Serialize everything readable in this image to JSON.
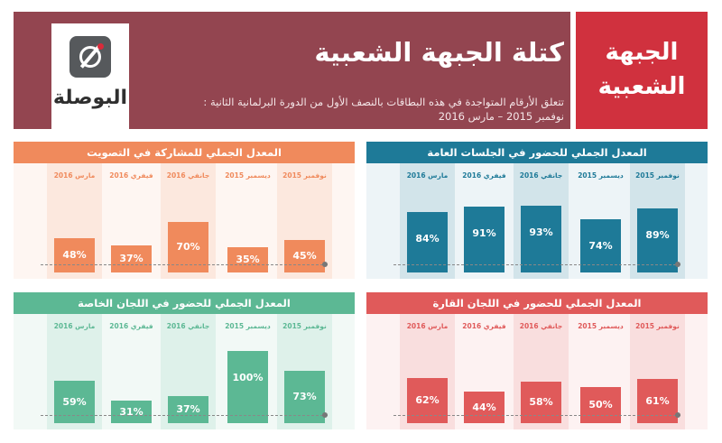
{
  "header": {
    "title": "كتلة الجبهة الشعبية",
    "subtitle_line1": "تتعلق الأرقام المتواجدة في هذه البطاقات بالنصف الأول من الدورة البرلمانية الثانية :",
    "subtitle_line2": "نوفمبر 2015 – مارس 2016",
    "bloc_name_line1": "الجبهة",
    "bloc_name_line2": "الشعبية",
    "logo_text": "البوصلة"
  },
  "colors": {
    "header_bg": "#934550",
    "name_box_bg": "#d0313e",
    "voting": "#f08a5c",
    "plenary": "#1e7a98",
    "special": "#5cb894",
    "standing": "#e05a5a"
  },
  "chart_data": [
    {
      "id": "voting",
      "type": "bar",
      "title": "المعدل الجملي للمشاركة في التصويت",
      "categories": [
        "نوفمبر 2015",
        "ديسمبر 2015",
        "جانفي 2016",
        "فيفري 2016",
        "مارس 2016"
      ],
      "values": [
        45,
        35,
        70,
        37,
        48
      ],
      "value_labels": [
        "45%",
        "35%",
        "70%",
        "37%",
        "48%"
      ],
      "highlight_categories": [
        "نوفمبر 2015",
        "جانفي 2016",
        "مارس 2016"
      ],
      "ylim": [
        0,
        100
      ],
      "color": "#f08a5c"
    },
    {
      "id": "plenary",
      "type": "bar",
      "title": "المعدل الجملي للحضور في الجلسات العامة",
      "categories": [
        "نوفمبر 2015",
        "ديسمبر 2015",
        "جانفي 2016",
        "فيفري 2016",
        "مارس 2016"
      ],
      "values": [
        89,
        74,
        93,
        91,
        84
      ],
      "value_labels": [
        "89%",
        "74%",
        "93%",
        "91%",
        "84%"
      ],
      "highlight_categories": [
        "نوفمبر 2015",
        "جانفي 2016",
        "مارس 2016"
      ],
      "ylim": [
        0,
        100
      ],
      "color": "#1e7a98"
    },
    {
      "id": "special",
      "type": "bar",
      "title": "المعدل الجملي للحضور في اللجان الخاصة",
      "categories": [
        "نوفمبر 2015",
        "ديسمبر 2015",
        "جانفي 2016",
        "فيفري 2016",
        "مارس 2016"
      ],
      "values": [
        73,
        100,
        37,
        31,
        59
      ],
      "value_labels": [
        "73%",
        "100%",
        "37%",
        "31%",
        "59%"
      ],
      "highlight_categories": [
        "نوفمبر 2015",
        "جانفي 2016",
        "مارس 2016"
      ],
      "ylim": [
        0,
        100
      ],
      "color": "#5cb894"
    },
    {
      "id": "standing",
      "type": "bar",
      "title": "المعدل الجملي للحضور في اللجان القارة",
      "categories": [
        "نوفمبر 2015",
        "ديسمبر 2015",
        "جانفي 2016",
        "فيفري 2016",
        "مارس 2016"
      ],
      "values": [
        61,
        50,
        58,
        44,
        62
      ],
      "value_labels": [
        "61%",
        "50%",
        "58%",
        "44%",
        "62%"
      ],
      "highlight_categories": [
        "نوفمبر 2015",
        "جانفي 2016",
        "مارس 2016"
      ],
      "ylim": [
        0,
        100
      ],
      "color": "#e05a5a"
    }
  ]
}
